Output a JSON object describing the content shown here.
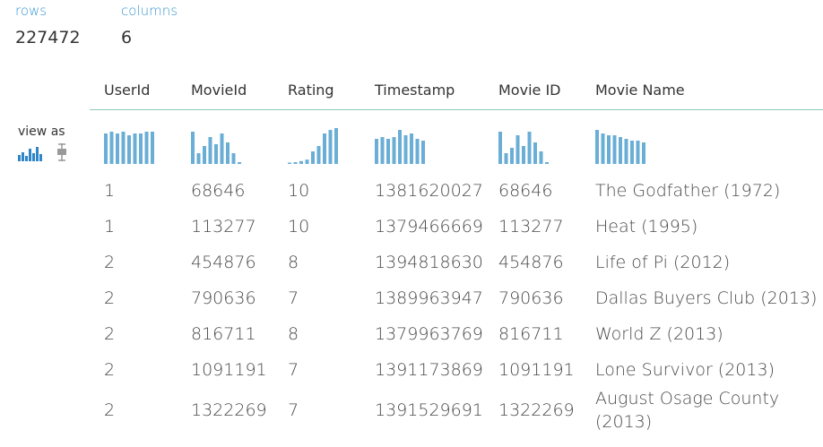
{
  "summary": {
    "rows_label": "rows",
    "rows_value": "227472",
    "columns_label": "columns",
    "columns_value": "6"
  },
  "view_as": {
    "label": "view as",
    "options": [
      "histogram-icon",
      "boxplot-icon"
    ]
  },
  "colors": {
    "accent": "#3a96cf",
    "bar": "#6aaed6",
    "header_rule": "#8fc9b4"
  },
  "columns": [
    "UserId",
    "MovieId",
    "Rating",
    "Timestamp",
    "Movie ID",
    "Movie Name"
  ],
  "histograms": [
    [
      0.85,
      0.9,
      0.85,
      0.9,
      0.8,
      0.85,
      0.85,
      0.9,
      0.9
    ],
    [
      0.9,
      0.3,
      0.5,
      0.75,
      0.55,
      0.85,
      0.6,
      0.3,
      0.05
    ],
    [
      0.02,
      0.05,
      0.08,
      0.12,
      0.35,
      0.5,
      0.85,
      0.95,
      1.0
    ],
    [
      0.7,
      0.75,
      0.7,
      0.75,
      0.95,
      0.8,
      0.85,
      0.7,
      0.65
    ],
    [
      0.9,
      0.3,
      0.45,
      0.8,
      0.5,
      0.9,
      0.6,
      0.35,
      0.05
    ],
    [
      0.95,
      0.85,
      0.8,
      0.8,
      0.75,
      0.7,
      0.65,
      0.65,
      0.6
    ]
  ],
  "rows": [
    [
      "1",
      "68646",
      "10",
      "1381620027",
      "68646",
      "The Godfather (1972)"
    ],
    [
      "1",
      "113277",
      "10",
      "1379466669",
      "113277",
      "Heat (1995)"
    ],
    [
      "2",
      "454876",
      "8",
      "1394818630",
      "454876",
      "Life of Pi (2012)"
    ],
    [
      "2",
      "790636",
      "7",
      "1389963947",
      "790636",
      "Dallas Buyers Club (2013)"
    ],
    [
      "2",
      "816711",
      "8",
      "1379963769",
      "816711",
      "World Z (2013)"
    ],
    [
      "2",
      "1091191",
      "7",
      "1391173869",
      "1091191",
      "Lone Survivor (2013)"
    ],
    [
      "2",
      "1322269",
      "7",
      "1391529691",
      "1322269",
      "August Osage County (2013)"
    ]
  ]
}
